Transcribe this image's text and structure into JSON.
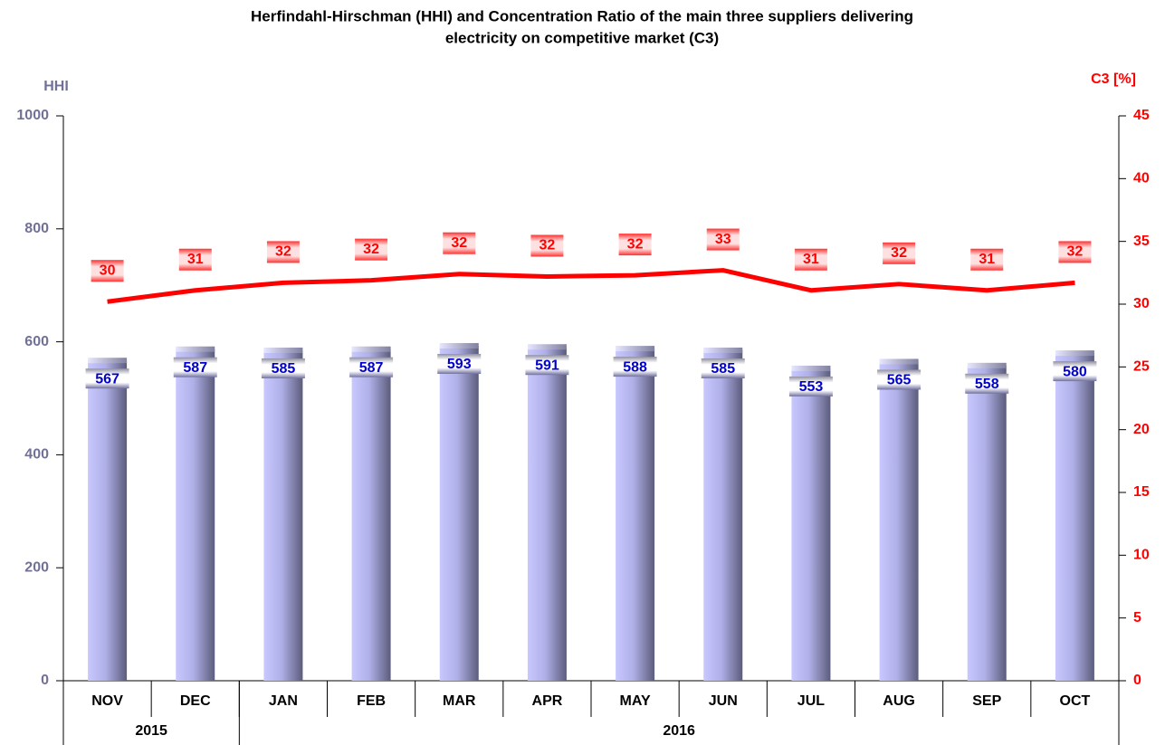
{
  "chart_data": {
    "type": "bar_line",
    "title": [
      "Herfindahl-Hirschman (HHI) and Concentration Ratio of the main three suppliers delivering",
      "electricity on competitive market (C3)"
    ],
    "y_label": "HHI",
    "y2_label": "C3 [%]",
    "categories": [
      "NOV",
      "DEC",
      "JAN",
      "FEB",
      "MAR",
      "APR",
      "MAY",
      "JUN",
      "JUL",
      "AUG",
      "SEP",
      "OCT"
    ],
    "year_groups": [
      {
        "label": "2015",
        "count": 2
      },
      {
        "label": "2016",
        "count": 10
      }
    ],
    "series": [
      {
        "name": "HHI",
        "type": "bar",
        "color": "#9a9ad8",
        "label_color": "#0000cc",
        "values": [
          567,
          587,
          585,
          587,
          593,
          591,
          588,
          585,
          553,
          565,
          558,
          580
        ]
      },
      {
        "name": "C3",
        "type": "line",
        "axis": "y2",
        "color": "#ff0000",
        "values": [
          30.2,
          31.1,
          31.7,
          31.9,
          32.4,
          32.2,
          32.3,
          32.7,
          31.1,
          31.6,
          31.1,
          31.7
        ],
        "value_labels": [
          "30",
          "31",
          "32",
          "32",
          "32",
          "32",
          "32",
          "33",
          "31",
          "32",
          "31",
          "32"
        ]
      }
    ],
    "ylim": [
      0,
      1000
    ],
    "yticks": [
      0,
      200,
      400,
      600,
      800,
      1000
    ],
    "y2lim": [
      0,
      45
    ],
    "y2ticks": [
      0,
      5,
      10,
      15,
      20,
      25,
      30,
      35,
      40,
      45
    ],
    "y_color": "#707098",
    "y2_color": "#ff0000",
    "grid": false
  }
}
